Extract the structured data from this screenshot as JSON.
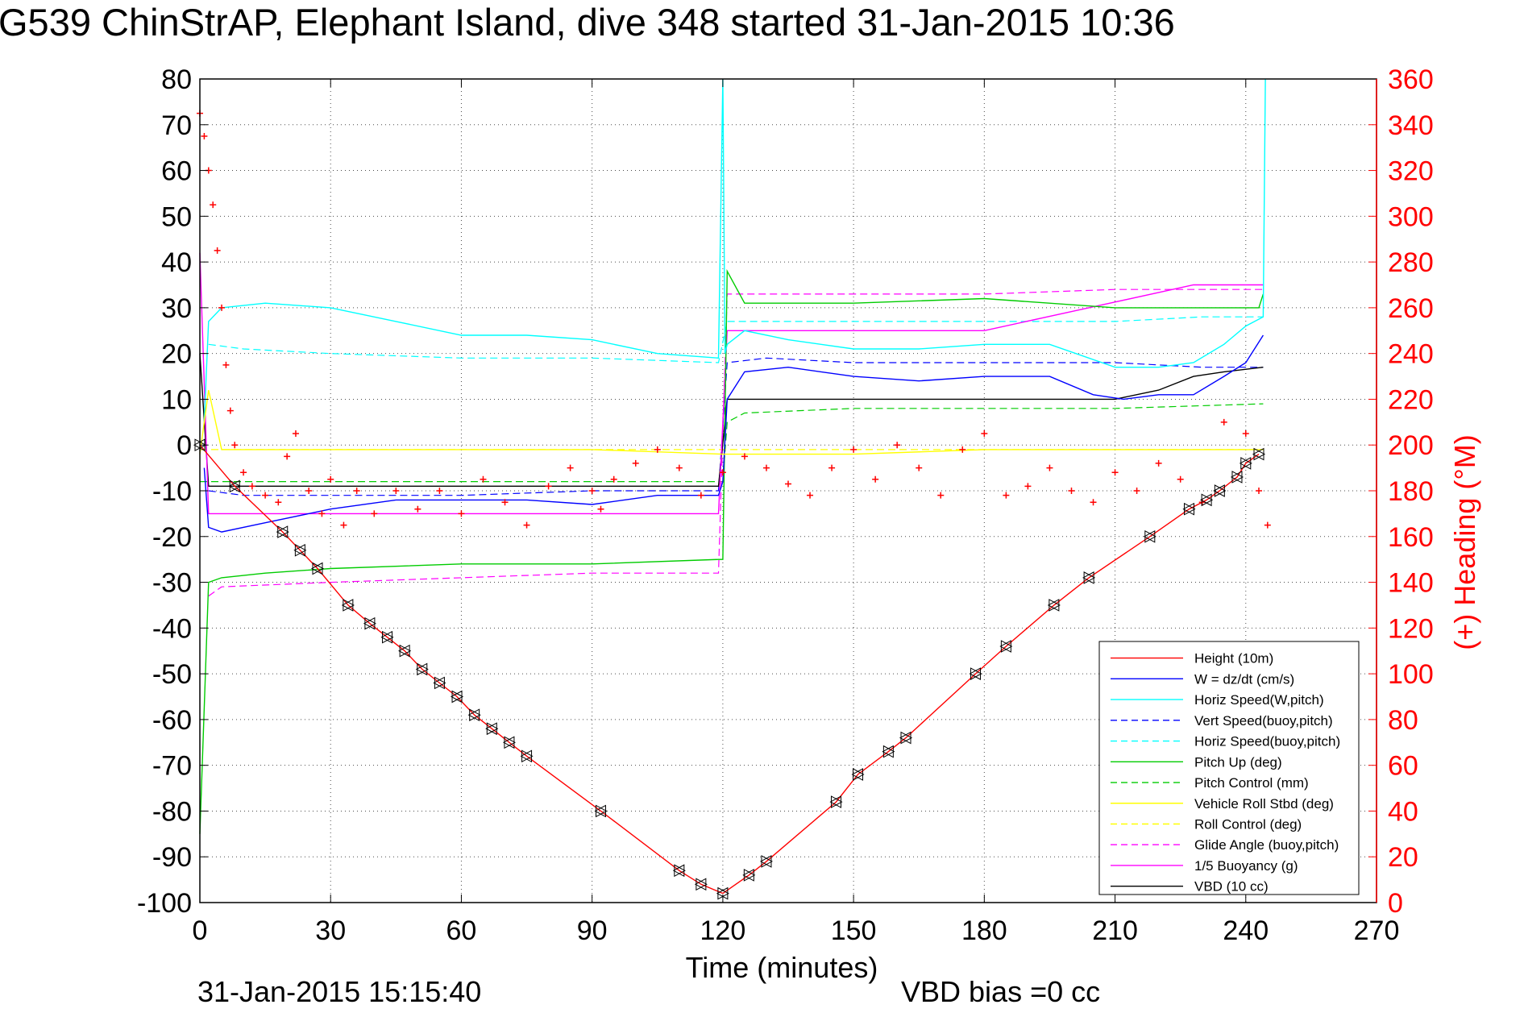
{
  "chart_data": {
    "type": "line",
    "title": "G539 ChinStrAP, Elephant Island, dive 348 started 31-Jan-2015 10:36",
    "xlabel": "Time (minutes)",
    "ylabel_right": "(+) Heading (°M)",
    "xlim": [
      0,
      270
    ],
    "ylim_left": [
      -100,
      80
    ],
    "ylim_right": [
      0,
      360
    ],
    "x_ticks": [
      0,
      30,
      60,
      90,
      120,
      150,
      180,
      210,
      240,
      270
    ],
    "y_ticks_left": [
      80,
      70,
      60,
      50,
      40,
      30,
      20,
      10,
      0,
      -10,
      -20,
      -30,
      -40,
      -50,
      -60,
      -70,
      -80,
      -90,
      -100
    ],
    "y_ticks_right": [
      360,
      340,
      320,
      300,
      280,
      260,
      240,
      220,
      200,
      180,
      160,
      140,
      120,
      100,
      80,
      60,
      40,
      20,
      0
    ],
    "grid": true,
    "legend_position": "bottom-right",
    "footer_left": "31-Jan-2015 15:15:40",
    "footer_right": "VBD bias =0 cc",
    "legend": [
      {
        "label": "Height (10m)",
        "color": "#ff0000",
        "dash": false
      },
      {
        "label": "W = dz/dt (cm/s)",
        "color": "#0000ff",
        "dash": false
      },
      {
        "label": "Horiz Speed(W,pitch)",
        "color": "#00ffff",
        "dash": false
      },
      {
        "label": "Vert Speed(buoy,pitch)",
        "color": "#0000ff",
        "dash": true
      },
      {
        "label": "Horiz Speed(buoy,pitch)",
        "color": "#00ffff",
        "dash": true
      },
      {
        "label": "Pitch Up (deg)",
        "color": "#00cc00",
        "dash": false
      },
      {
        "label": "Pitch Control (mm)",
        "color": "#00cc00",
        "dash": true
      },
      {
        "label": "Vehicle Roll Stbd (deg)",
        "color": "#ffff00",
        "dash": false
      },
      {
        "label": "Roll Control (deg)",
        "color": "#ffff00",
        "dash": true
      },
      {
        "label": "Glide Angle (buoy,pitch)",
        "color": "#ff00ff",
        "dash": true
      },
      {
        "label": "1/5 Buoyancy (g)",
        "color": "#ff00ff",
        "dash": false
      },
      {
        "label": "VBD (10 cc)",
        "color": "#000000",
        "dash": false
      }
    ],
    "series": [
      {
        "name": "Height (10m)",
        "axis": "left",
        "color": "#ff0000",
        "markers": true,
        "x": [
          0,
          8,
          19,
          23,
          27,
          34,
          39,
          43,
          47,
          51,
          55,
          59,
          63,
          67,
          71,
          75,
          92,
          110,
          115,
          120,
          126,
          130,
          146,
          151,
          158,
          162,
          178,
          185,
          196,
          204,
          218,
          227,
          231,
          234,
          238,
          240,
          243
        ],
        "y": [
          0,
          -9,
          -19,
          -23,
          -27,
          -35,
          -39,
          -42,
          -45,
          -49,
          -52,
          -55,
          -59,
          -62,
          -65,
          -68,
          -80,
          -93,
          -96,
          -98,
          -94,
          -91,
          -78,
          -72,
          -67,
          -64,
          -50,
          -44,
          -35,
          -29,
          -20,
          -14,
          -12,
          -10,
          -7,
          -4,
          -2
        ]
      },
      {
        "name": "W = dz/dt (cm/s)",
        "axis": "left",
        "color": "#0000ff",
        "x": [
          1,
          2,
          5,
          15,
          30,
          45,
          60,
          75,
          90,
          105,
          119,
          120,
          121,
          125,
          135,
          150,
          165,
          180,
          195,
          205,
          212,
          220,
          228,
          235,
          240,
          244
        ],
        "y": [
          -5,
          -18,
          -19,
          -17,
          -14,
          -12,
          -12,
          -12,
          -13,
          -11,
          -11,
          -8,
          10,
          16,
          17,
          15,
          14,
          15,
          15,
          11,
          10,
          11,
          11,
          15,
          18,
          24
        ]
      },
      {
        "name": "Horiz Speed(W,pitch)",
        "axis": "left",
        "color": "#00ffff",
        "x": [
          1,
          2,
          5,
          15,
          30,
          45,
          60,
          75,
          90,
          105,
          119,
          120,
          120.5,
          121,
          125,
          135,
          150,
          165,
          180,
          195,
          210,
          220,
          228,
          235,
          240,
          244,
          244.5
        ],
        "y": [
          5,
          27,
          30,
          31,
          30,
          27,
          24,
          24,
          23,
          20,
          19,
          80,
          20,
          22,
          25,
          23,
          21,
          21,
          22,
          22,
          17,
          17,
          18,
          22,
          26,
          28,
          80
        ]
      },
      {
        "name": "Vert Speed(buoy,pitch)",
        "axis": "left",
        "color": "#0000ff",
        "dash": true,
        "x": [
          2,
          10,
          30,
          60,
          90,
          119,
          121,
          130,
          150,
          180,
          210,
          230,
          244
        ],
        "y": [
          -10,
          -11,
          -11,
          -11,
          -10,
          -10,
          18,
          19,
          18,
          18,
          18,
          17,
          17
        ]
      },
      {
        "name": "Horiz Speed(buoy,pitch)",
        "axis": "left",
        "color": "#00ffff",
        "dash": true,
        "x": [
          2,
          10,
          30,
          60,
          90,
          119,
          121,
          130,
          150,
          180,
          210,
          230,
          244
        ],
        "y": [
          22,
          21,
          20,
          19,
          19,
          18,
          27,
          27,
          27,
          27,
          27,
          28,
          28
        ]
      },
      {
        "name": "Pitch Up (deg)",
        "axis": "left",
        "color": "#00cc00",
        "x": [
          0,
          2,
          5,
          15,
          30,
          60,
          90,
          119,
          120,
          121,
          125,
          150,
          180,
          210,
          235,
          243,
          244
        ],
        "y": [
          -85,
          -30,
          -29,
          -28,
          -27,
          -26,
          -26,
          -25,
          -25,
          38,
          31,
          31,
          32,
          30,
          30,
          30,
          33
        ]
      },
      {
        "name": "Pitch Control (mm)",
        "axis": "left",
        "color": "#00cc00",
        "dash": true,
        "x": [
          0,
          120,
          121,
          125,
          150,
          180,
          210,
          244
        ],
        "y": [
          -8,
          -8,
          5,
          7,
          8,
          8,
          8,
          9
        ]
      },
      {
        "name": "Vehicle Roll Stbd (deg)",
        "axis": "left",
        "color": "#ffff00",
        "x": [
          0,
          2,
          5,
          10,
          30,
          60,
          90,
          120,
          125,
          150,
          180,
          210,
          240,
          244
        ],
        "y": [
          -2,
          12,
          -1,
          -1,
          -1,
          -1,
          -1,
          -2,
          -2,
          -2,
          -1,
          -1,
          -1,
          -1
        ]
      },
      {
        "name": "Roll Control (deg)",
        "axis": "left",
        "color": "#ffff00",
        "dash": true,
        "x": [
          0,
          244
        ],
        "y": [
          -1,
          -1
        ]
      },
      {
        "name": "Glide Angle (buoy,pitch)",
        "axis": "left",
        "color": "#ff00ff",
        "dash": true,
        "x": [
          2,
          5,
          30,
          60,
          90,
          119,
          121,
          150,
          180,
          210,
          244
        ],
        "y": [
          -33,
          -31,
          -30,
          -29,
          -28,
          -28,
          33,
          33,
          33,
          34,
          34
        ]
      },
      {
        "name": "1/5 Buoyancy (g)",
        "axis": "left",
        "color": "#ff00ff",
        "x": [
          0,
          2,
          5,
          30,
          60,
          90,
          119,
          121,
          150,
          180,
          228,
          244
        ],
        "y": [
          42,
          -15,
          -15,
          -15,
          -15,
          -15,
          -15,
          25,
          25,
          25,
          35,
          35
        ]
      },
      {
        "name": "VBD (10 cc)",
        "axis": "left",
        "color": "#000000",
        "x": [
          0,
          2,
          60,
          119,
          121,
          150,
          180,
          210,
          220,
          228,
          235,
          244
        ],
        "y": [
          20,
          -9,
          -9,
          -9,
          10,
          10,
          10,
          10,
          12,
          15,
          16,
          17
        ]
      },
      {
        "name": "(+) Heading (°M)",
        "axis": "right",
        "color": "#ff0000",
        "markers": true,
        "x": [
          0,
          1,
          2,
          3,
          4,
          5,
          6,
          7,
          8,
          10,
          12,
          15,
          18,
          20,
          22,
          25,
          28,
          30,
          33,
          36,
          40,
          45,
          50,
          55,
          60,
          65,
          70,
          75,
          80,
          85,
          90,
          92,
          95,
          100,
          105,
          110,
          115,
          120,
          125,
          130,
          135,
          140,
          145,
          150,
          155,
          160,
          165,
          170,
          175,
          180,
          185,
          190,
          195,
          200,
          205,
          210,
          215,
          220,
          225,
          230,
          235,
          240,
          243,
          245
        ],
        "y": [
          345,
          335,
          320,
          305,
          285,
          260,
          235,
          215,
          200,
          188,
          182,
          178,
          175,
          195,
          205,
          180,
          170,
          185,
          165,
          180,
          170,
          180,
          172,
          180,
          170,
          185,
          175,
          165,
          182,
          190,
          180,
          172,
          185,
          192,
          198,
          190,
          178,
          188,
          195,
          190,
          183,
          178,
          190,
          198,
          185,
          200,
          190,
          178,
          198,
          205,
          178,
          182,
          190,
          180,
          175,
          188,
          180,
          192,
          185,
          175,
          210,
          205,
          180,
          165
        ]
      }
    ]
  }
}
